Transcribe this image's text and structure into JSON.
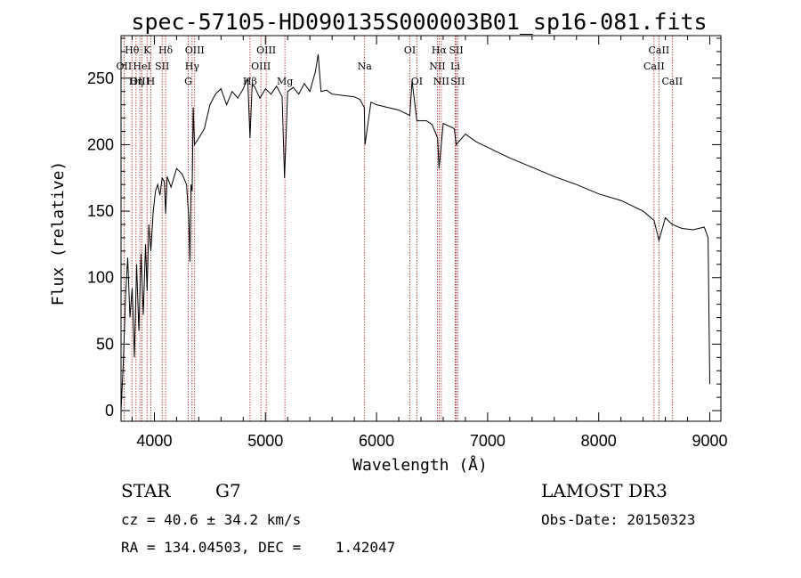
{
  "chart_data": {
    "type": "line",
    "title": "spec-57105-HD090135S000003B01_sp16-081.fits",
    "xlabel": "Wavelength (Å)",
    "ylabel": "Flux (relative)",
    "xlim": [
      3700,
      9100
    ],
    "ylim": [
      -8,
      282
    ],
    "xticks": [
      4000,
      5000,
      6000,
      7000,
      8000,
      9000
    ],
    "xtick_labels": [
      "4000",
      "5000",
      "6000",
      "7000",
      "8000",
      "9000"
    ],
    "yticks": [
      0,
      50,
      100,
      150,
      200,
      250
    ],
    "ytick_labels": [
      "0",
      "50",
      "100",
      "150",
      "200",
      "250"
    ],
    "grid": false,
    "series": [
      {
        "name": "Flux",
        "x": [
          3700,
          3720,
          3740,
          3760,
          3780,
          3800,
          3820,
          3840,
          3860,
          3880,
          3900,
          3920,
          3935,
          3950,
          3968,
          3990,
          4010,
          4030,
          4050,
          4070,
          4090,
          4101,
          4115,
          4150,
          4200,
          4250,
          4290,
          4310,
          4320,
          4330,
          4340,
          4350,
          4361,
          4400,
          4450,
          4500,
          4550,
          4600,
          4650,
          4700,
          4750,
          4800,
          4840,
          4861,
          4880,
          4900,
          4950,
          5000,
          5050,
          5100,
          5150,
          5172,
          5183,
          5200,
          5250,
          5300,
          5350,
          5400,
          5450,
          5475,
          5500,
          5550,
          5600,
          5700,
          5800,
          5850,
          5890,
          5896,
          5950,
          6000,
          6100,
          6200,
          6300,
          6320,
          6363,
          6450,
          6500,
          6550,
          6563,
          6600,
          6700,
          6717,
          6800,
          6900,
          7000,
          7200,
          7400,
          7600,
          7800,
          8000,
          8200,
          8400,
          8498,
          8542,
          8600,
          8662,
          8750,
          8850,
          8950,
          8985,
          9000
        ],
        "values": [
          0,
          35,
          85,
          115,
          70,
          92,
          40,
          110,
          60,
          118,
          72,
          125,
          90,
          140,
          120,
          150,
          165,
          170,
          162,
          175,
          172,
          148,
          176,
          168,
          182,
          178,
          170,
          145,
          112,
          170,
          165,
          228,
          200,
          205,
          212,
          230,
          238,
          242,
          230,
          240,
          235,
          242,
          250,
          205,
          245,
          244,
          235,
          242,
          238,
          244,
          236,
          175,
          200,
          240,
          243,
          238,
          246,
          240,
          255,
          268,
          240,
          241,
          238,
          237,
          236,
          234,
          228,
          200,
          232,
          230,
          228,
          226,
          222,
          248,
          218,
          218,
          215,
          205,
          182,
          216,
          212,
          200,
          208,
          202,
          198,
          190,
          183,
          176,
          170,
          163,
          158,
          150,
          143,
          128,
          145,
          140,
          137,
          136,
          138,
          130,
          20
        ]
      }
    ],
    "spectral_lines": [
      {
        "label": "Hθ",
        "wavelength": 3798,
        "row": 1
      },
      {
        "label": "OII",
        "wavelength": 3727,
        "row": 2
      },
      {
        "label": "OIII",
        "wavelength": 3869,
        "row": 3
      },
      {
        "label": "K",
        "wavelength": 3934,
        "row": 1
      },
      {
        "label": "HeI",
        "wavelength": 3889,
        "row": 2
      },
      {
        "label": "Hη",
        "wavelength": 3835,
        "row": 3
      },
      {
        "label": "SII",
        "wavelength": 4070,
        "row": 2
      },
      {
        "label": "H",
        "wavelength": 3968,
        "row": 3
      },
      {
        "label": "Hδ",
        "wavelength": 4101,
        "row": 1
      },
      {
        "label": "OIII",
        "wavelength": 4363,
        "row": 1
      },
      {
        "label": "Hγ",
        "wavelength": 4340,
        "row": 2
      },
      {
        "label": "G",
        "wavelength": 4305,
        "row": 3
      },
      {
        "label": "Hβ",
        "wavelength": 4861,
        "row": 3
      },
      {
        "label": "OIII",
        "wavelength": 5007,
        "row": 1
      },
      {
        "label": "OIII",
        "wavelength": 4959,
        "row": 2
      },
      {
        "label": "Mg",
        "wavelength": 5175,
        "row": 3
      },
      {
        "label": "Na",
        "wavelength": 5893,
        "row": 2
      },
      {
        "label": "OI",
        "wavelength": 6300,
        "row": 1
      },
      {
        "label": "OI",
        "wavelength": 6363,
        "row": 3
      },
      {
        "label": "Hα",
        "wavelength": 6563,
        "row": 1
      },
      {
        "label": "NII",
        "wavelength": 6548,
        "row": 2
      },
      {
        "label": "NII",
        "wavelength": 6583,
        "row": 3
      },
      {
        "label": "SII",
        "wavelength": 6717,
        "row": 1
      },
      {
        "label": "Li",
        "wavelength": 6708,
        "row": 2
      },
      {
        "label": "SII",
        "wavelength": 6731,
        "row": 3
      },
      {
        "label": "CaII",
        "wavelength": 8542,
        "row": 1
      },
      {
        "label": "CaII",
        "wavelength": 8498,
        "row": 2
      },
      {
        "label": "CaII",
        "wavelength": 8662,
        "row": 3
      }
    ]
  },
  "info": {
    "object_type": "STAR",
    "subclass": "G7",
    "survey": "LAMOST DR3",
    "redshift_text": "cz = 40.6 ± 34.2 km/s",
    "obs_date_text": "Obs-Date: 20150323",
    "coords_text": "RA = 134.04503, DEC =    1.42047"
  },
  "colors": {
    "spectrum": "#000000",
    "line_markers": "#b22222",
    "axes": "#000000",
    "background": "#ffffff"
  }
}
